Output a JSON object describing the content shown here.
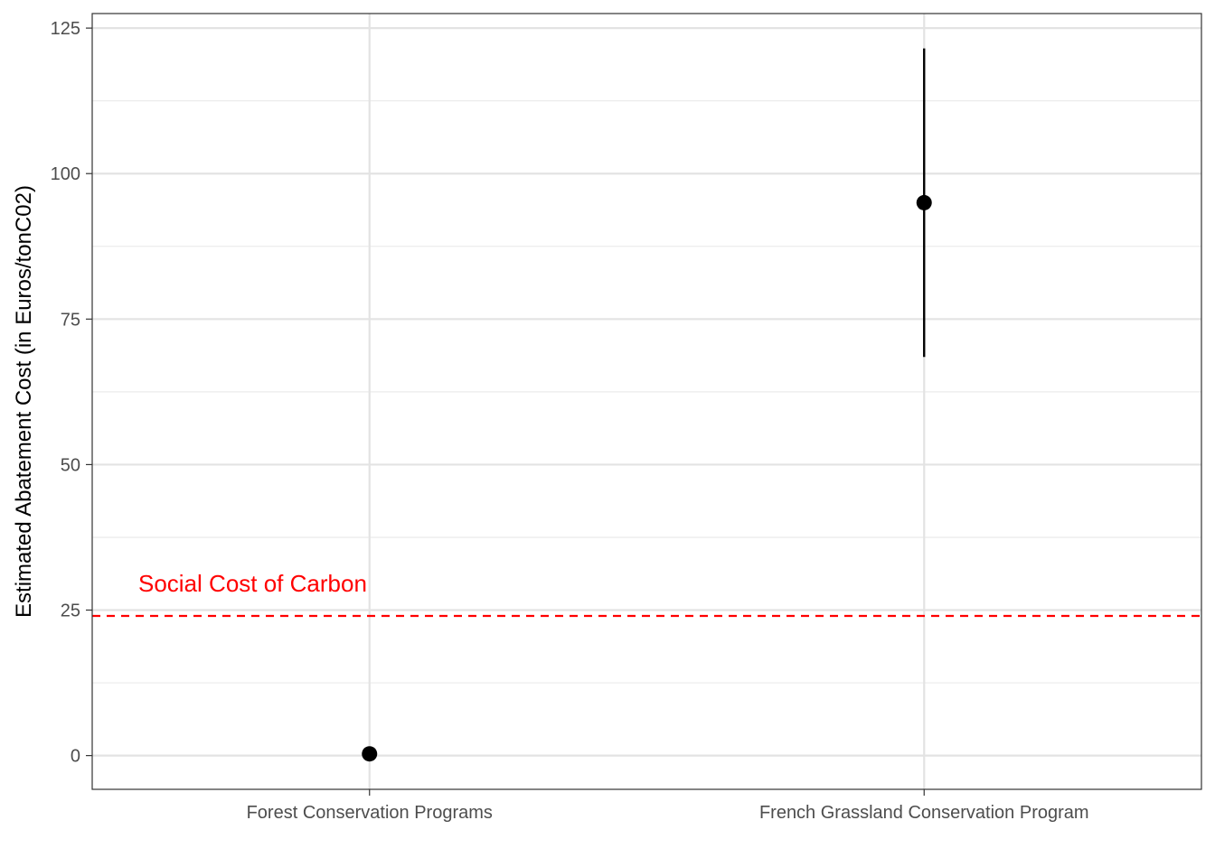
{
  "chart_data": {
    "type": "scatter",
    "title": "",
    "xlabel": "",
    "ylabel": "Estimated Abatement Cost (in Euros/tonC02)",
    "categories": [
      "Forest Conservation Programs",
      "French Grassland Conservation Program"
    ],
    "points": [
      {
        "category": "Forest Conservation Programs",
        "value": 0.3,
        "ci_low": null,
        "ci_high": null
      },
      {
        "category": "French Grassland Conservation Program",
        "value": 95,
        "ci_low": 68.5,
        "ci_high": 121.5
      }
    ],
    "ylim": [
      -5.8,
      127.5
    ],
    "yticks": [
      0,
      25,
      50,
      75,
      100,
      125
    ],
    "grid": true,
    "reference_line": {
      "value": 24,
      "label": "Social Cost of Carbon",
      "color": "#ff0000",
      "style": "dashed"
    }
  }
}
